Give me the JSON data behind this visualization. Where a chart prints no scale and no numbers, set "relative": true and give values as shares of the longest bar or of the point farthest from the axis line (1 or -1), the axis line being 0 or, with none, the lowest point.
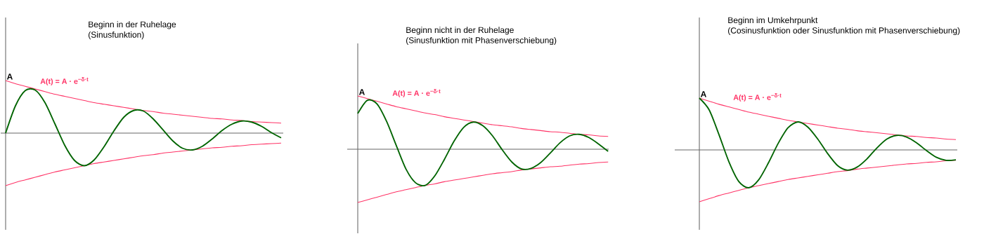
{
  "chart_data": [
    {
      "type": "line",
      "relative": true,
      "title": "Beginn in der Ruhelage",
      "subtitle": "(Sinusfunktion)",
      "annotations": [
        "A",
        "A(t) = A · e$^{−δ·t}$"
      ],
      "categories": [
        null,
        null,
        null,
        null,
        null,
        null,
        null,
        null,
        null,
        null,
        null,
        null,
        null,
        null,
        null,
        null,
        null,
        null,
        null,
        null,
        null,
        null,
        null,
        null,
        null,
        null,
        null,
        null,
        null
      ],
      "series": [
        {
          "color": "#ff3366",
          "values": [
            1,
            0.94,
            0.89,
            0.84,
            0.79,
            0.74,
            0.7,
            0.66,
            0.62,
            0.58,
            0.55,
            0.52,
            0.49,
            0.46,
            0.43,
            0.41,
            0.38,
            0.36,
            0.34,
            0.32,
            0.3,
            0.28,
            0.27,
            0.25,
            0.24,
            0.22,
            0.21,
            0.2,
            0.19
          ]
        },
        {
          "color": "#ff3366",
          "values": [
            -1,
            -0.94,
            -0.89,
            -0.84,
            -0.79,
            -0.74,
            -0.7,
            -0.66,
            -0.62,
            -0.58,
            -0.55,
            -0.52,
            -0.49,
            -0.46,
            -0.43,
            -0.41,
            -0.38,
            -0.36,
            -0.34,
            -0.32,
            -0.3,
            -0.28,
            -0.27,
            -0.25,
            -0.24,
            -0.22,
            -0.21,
            -0.2,
            -0.19
          ]
        },
        {
          "color": "#006400",
          "values": [
            0,
            0.52,
            0.81,
            0.82,
            0.58,
            0.18,
            -0.23,
            -0.52,
            -0.62,
            -0.51,
            -0.26,
            0.04,
            0.3,
            0.43,
            0.42,
            0.27,
            0.06,
            -0.15,
            -0.29,
            -0.32,
            -0.25,
            -0.11,
            0.05,
            0.17,
            0.23,
            0.21,
            0.13,
            0.01,
            -0.09
          ]
        }
      ]
    },
    {
      "type": "line",
      "relative": true,
      "title": "Beginn nicht in der Ruhelage",
      "subtitle": "(Sinusfunktion mit Phasenverschiebung)",
      "annotations": [
        "A",
        "A(t) = A · e$^{−δ·t}$"
      ],
      "categories": [
        null,
        null,
        null,
        null,
        null,
        null,
        null,
        null,
        null,
        null,
        null,
        null,
        null,
        null,
        null,
        null,
        null,
        null,
        null,
        null,
        null,
        null,
        null,
        null,
        null,
        null,
        null
      ],
      "series": [
        {
          "color": "#ff3366",
          "values": [
            1,
            0.95,
            0.9,
            0.85,
            0.8,
            0.76,
            0.72,
            0.68,
            0.65,
            0.61,
            0.58,
            0.55,
            0.52,
            0.49,
            0.46,
            0.44,
            0.42,
            0.39,
            0.37,
            0.35,
            0.33,
            0.32,
            0.3,
            0.28,
            0.27,
            0.25,
            0.24
          ]
        },
        {
          "color": "#ff3366",
          "values": [
            -1,
            -0.95,
            -0.9,
            -0.85,
            -0.8,
            -0.76,
            -0.72,
            -0.68,
            -0.65,
            -0.61,
            -0.58,
            -0.55,
            -0.52,
            -0.49,
            -0.46,
            -0.44,
            -0.42,
            -0.39,
            -0.37,
            -0.35,
            -0.33,
            -0.32,
            -0.3,
            -0.28,
            -0.27,
            -0.25,
            -0.24
          ]
        },
        {
          "color": "#006400",
          "values": [
            0.67,
            0.92,
            0.85,
            0.52,
            0.07,
            -0.37,
            -0.63,
            -0.68,
            -0.5,
            -0.19,
            0.15,
            0.41,
            0.51,
            0.44,
            0.25,
            -0.01,
            -0.24,
            -0.37,
            -0.36,
            -0.25,
            -0.07,
            0.12,
            0.25,
            0.28,
            0.22,
            0.1,
            -0.04
          ]
        }
      ]
    },
    {
      "type": "line",
      "relative": true,
      "title": "Beginn im Umkehrpunkt",
      "subtitle": "(Cosinusfunktion oder Sinusfunktion mit Phasenverschiebung)",
      "annotations": [
        "A",
        "A(t) = A · e$^{−δ·t}$"
      ],
      "categories": [
        null,
        null,
        null,
        null,
        null,
        null,
        null,
        null,
        null,
        null,
        null,
        null,
        null,
        null,
        null,
        null,
        null,
        null,
        null,
        null,
        null,
        null,
        null,
        null,
        null,
        null,
        null
      ],
      "series": [
        {
          "color": "#ff3366",
          "values": [
            1,
            0.94,
            0.88,
            0.83,
            0.78,
            0.73,
            0.69,
            0.65,
            0.61,
            0.57,
            0.54,
            0.51,
            0.48,
            0.45,
            0.42,
            0.4,
            0.37,
            0.35,
            0.33,
            0.31,
            0.29,
            0.27,
            0.26,
            0.24,
            0.23,
            0.21,
            0.2
          ]
        },
        {
          "color": "#ff3366",
          "values": [
            -1,
            -0.94,
            -0.88,
            -0.83,
            -0.78,
            -0.73,
            -0.69,
            -0.65,
            -0.61,
            -0.57,
            -0.54,
            -0.51,
            -0.48,
            -0.45,
            -0.42,
            -0.4,
            -0.37,
            -0.35,
            -0.33,
            -0.31,
            -0.29,
            -0.27,
            -0.26,
            -0.24,
            -0.23,
            -0.21,
            -0.2
          ]
        },
        {
          "color": "#006400",
          "values": [
            1,
            0.77,
            0.29,
            -0.23,
            -0.61,
            -0.73,
            -0.58,
            -0.25,
            0.13,
            0.43,
            0.54,
            0.44,
            0.21,
            -0.07,
            -0.3,
            -0.39,
            -0.33,
            -0.17,
            0.04,
            0.21,
            0.28,
            0.25,
            0.14,
            -0.01,
            -0.14,
            -0.2,
            -0.19
          ]
        }
      ]
    }
  ]
}
